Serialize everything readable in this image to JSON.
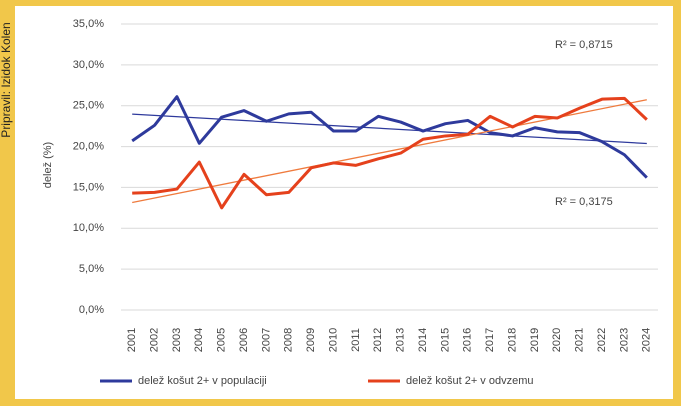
{
  "side_note": "Pripravil: Izidok Kolen",
  "chart_data": {
    "type": "line",
    "y_label": "delež (%)",
    "categories": [
      "2001",
      "2002",
      "2003",
      "2004",
      "2005",
      "2006",
      "2007",
      "2008",
      "2009",
      "2010",
      "2011",
      "2012",
      "2013",
      "2014",
      "2015",
      "2016",
      "2017",
      "2018",
      "2019",
      "2020",
      "2021",
      "2022",
      "2023",
      "2024"
    ],
    "series": [
      {
        "name": "delež košut 2+ v populaciji",
        "color": "#2e3a9c",
        "values": [
          20.7,
          22.6,
          26.1,
          20.4,
          23.6,
          24.4,
          23.1,
          24.0,
          24.2,
          21.9,
          21.9,
          23.7,
          23.0,
          21.9,
          22.8,
          23.2,
          21.7,
          21.3,
          22.3,
          21.8,
          21.7,
          20.6,
          19.0,
          16.2
        ]
      },
      {
        "name": "delež košut 2+ v odvzemu",
        "color": "#e5411c",
        "values": [
          14.3,
          14.4,
          14.8,
          18.1,
          12.5,
          16.6,
          14.1,
          14.4,
          17.4,
          18.0,
          17.7,
          18.5,
          19.2,
          20.9,
          21.3,
          21.5,
          23.7,
          22.4,
          23.7,
          23.5,
          24.7,
          25.8,
          25.9,
          23.3
        ]
      }
    ],
    "trendline_colors": [
      "#2e3a9c",
      "#ef7b3e"
    ],
    "annotations": [
      "R² = 0,8715",
      "R² = 0,3175"
    ],
    "ylim": [
      0,
      35
    ],
    "yticks": [
      {
        "value": 0,
        "label": "0,0%"
      },
      {
        "value": 5,
        "label": "5,0%"
      },
      {
        "value": 10,
        "label": "10,0%"
      },
      {
        "value": 15,
        "label": "15,0%"
      },
      {
        "value": 20,
        "label": "20,0%"
      },
      {
        "value": 25,
        "label": "25,0%"
      },
      {
        "value": 30,
        "label": "30,0%"
      },
      {
        "value": 35,
        "label": "35,0%"
      }
    ],
    "grid": true
  }
}
